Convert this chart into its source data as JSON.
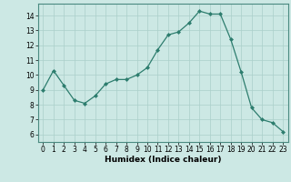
{
  "x": [
    0,
    1,
    2,
    3,
    4,
    5,
    6,
    7,
    8,
    9,
    10,
    11,
    12,
    13,
    14,
    15,
    16,
    17,
    18,
    19,
    20,
    21,
    22,
    23
  ],
  "y": [
    9.0,
    10.3,
    9.3,
    8.3,
    8.1,
    8.6,
    9.4,
    9.7,
    9.7,
    10.0,
    10.5,
    11.7,
    12.7,
    12.9,
    13.5,
    14.3,
    14.1,
    14.1,
    12.4,
    10.2,
    7.8,
    7.0,
    6.8,
    6.2
  ],
  "line_color": "#2d7d6e",
  "marker": "D",
  "marker_size": 2.0,
  "bg_color": "#cce8e4",
  "grid_color": "#aacfca",
  "xlabel": "Humidex (Indice chaleur)",
  "ylim": [
    5.5,
    14.8
  ],
  "xlim": [
    -0.5,
    23.5
  ],
  "yticks": [
    6,
    7,
    8,
    9,
    10,
    11,
    12,
    13,
    14
  ],
  "xticks": [
    0,
    1,
    2,
    3,
    4,
    5,
    6,
    7,
    8,
    9,
    10,
    11,
    12,
    13,
    14,
    15,
    16,
    17,
    18,
    19,
    20,
    21,
    22,
    23
  ],
  "xlabel_fontsize": 6.5,
  "tick_fontsize": 5.5,
  "line_width": 0.9,
  "spine_color": "#4a8a80"
}
